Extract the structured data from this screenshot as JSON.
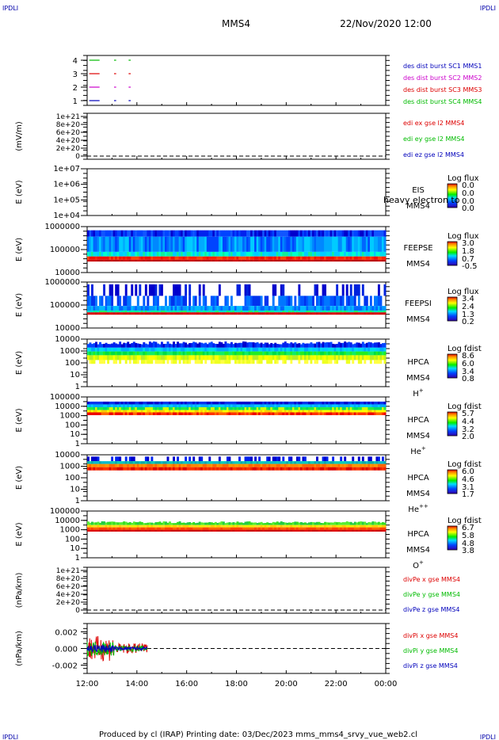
{
  "header": {
    "corner_left_top": "IPDLI",
    "corner_right_top": "IPDLI",
    "corner_left_bottom": "IPDLI",
    "corner_right_bottom": "IPDLI",
    "title": "MMS4",
    "datetime": "22/Nov/2020 12:00"
  },
  "footer": {
    "credit": "Produced by cl (IRAP)   Printing date: 03/Dec/2023   mms_mms4_srvy_vue_web2.cl"
  },
  "colors": {
    "red": "#dd0000",
    "green": "#00bb00",
    "blue": "#0000bb",
    "magenta": "#cc00cc",
    "black": "#000000"
  },
  "chart_data": [
    {
      "type": "line",
      "id": "burst",
      "ylabel": "",
      "yticks": [
        "4",
        "3",
        "2",
        "1"
      ],
      "x_ticks": [
        "12:00",
        "14:00",
        "16:00",
        "18:00",
        "20:00",
        "22:00",
        "00:00"
      ],
      "legend": [
        {
          "text": "des dist burst SC1 MMS1",
          "color": "#0000bb"
        },
        {
          "text": "des dist burst SC2 MMS2",
          "color": "#cc00cc"
        },
        {
          "text": "des dist burst SC3 MMS3",
          "color": "#dd0000"
        },
        {
          "text": "des dist burst SC4 MMS4",
          "color": "#00bb00"
        }
      ],
      "series": [
        {
          "level": 4,
          "color": "#00bb00",
          "segments": [
            [
              "12:05",
              "12:30"
            ],
            [
              "13:05",
              "13:10"
            ],
            [
              "13:40",
              "13:45"
            ]
          ]
        },
        {
          "level": 3,
          "color": "#dd0000",
          "segments": [
            [
              "12:05",
              "12:30"
            ],
            [
              "13:05",
              "13:10"
            ],
            [
              "13:40",
              "13:45"
            ]
          ]
        },
        {
          "level": 2,
          "color": "#cc00cc",
          "segments": [
            [
              "12:05",
              "12:30"
            ],
            [
              "13:05",
              "13:10"
            ],
            [
              "13:40",
              "13:45"
            ]
          ]
        },
        {
          "level": 1,
          "color": "#0000bb",
          "segments": [
            [
              "12:05",
              "12:30"
            ],
            [
              "13:05",
              "13:10"
            ],
            [
              "13:40",
              "13:45"
            ]
          ]
        }
      ]
    },
    {
      "type": "line",
      "id": "efield",
      "ylabel": "(mV/m)",
      "yticks": [
        "1e+21",
        "8e+20",
        "6e+20",
        "4e+20",
        "2e+20",
        "0"
      ],
      "legend": [
        {
          "text": "edi ex gse l2 MMS4",
          "color": "#dd0000"
        },
        {
          "text": "edi ey gse l2 MMS4",
          "color": "#00bb00"
        },
        {
          "text": "edi ez gse l2 MMS4",
          "color": "#0000bb"
        }
      ]
    },
    {
      "type": "heatmap",
      "id": "eis",
      "ylabel": "E (eV)",
      "yticks": [
        "1e+07",
        "1e+06",
        "1e+05",
        "1e+04"
      ],
      "label_lines": [
        "EIS",
        "MMS4"
      ],
      "overlay": "heavy electron to",
      "colorbar_title": "Log flux",
      "colorbar_ticks": [
        "0.0",
        "0.0",
        "0.0",
        "0.0"
      ]
    },
    {
      "type": "heatmap",
      "id": "feepse",
      "ylabel": "E (eV)",
      "yticks": [
        "1000000",
        "100000",
        "10000"
      ],
      "label_lines": [
        "FEEPSE",
        "MMS4"
      ],
      "colorbar_title": "Log flux",
      "colorbar_ticks": [
        "3.0",
        "1.8",
        "0.7",
        "-0.5"
      ]
    },
    {
      "type": "heatmap",
      "id": "feepsi",
      "ylabel": "E (eV)",
      "yticks": [
        "1000000",
        "100000",
        "10000"
      ],
      "label_lines": [
        "FEEPSI",
        "MMS4"
      ],
      "colorbar_title": "Log flux",
      "colorbar_ticks": [
        "3.4",
        "2.4",
        "1.3",
        "0.2"
      ]
    },
    {
      "type": "heatmap",
      "id": "hpca_h",
      "ylabel": "E (eV)",
      "yticks": [
        "10000",
        "1000",
        "100",
        "10",
        "1"
      ],
      "label_lines": [
        "HPCA",
        "MMS4",
        "H"
      ],
      "species_sup": "+",
      "colorbar_title": "Log fdist",
      "colorbar_ticks": [
        "8.6",
        "6.0",
        "3.4",
        "0.8"
      ]
    },
    {
      "type": "heatmap",
      "id": "hpca_he",
      "ylabel": "E (eV)",
      "yticks": [
        "100000",
        "10000",
        "1000",
        "100",
        "10",
        "1"
      ],
      "label_lines": [
        "HPCA",
        "MMS4",
        "He"
      ],
      "species_sup": "+",
      "colorbar_title": "Log fdist",
      "colorbar_ticks": [
        "5.7",
        "4.4",
        "3.2",
        "2.0"
      ]
    },
    {
      "type": "heatmap",
      "id": "hpca_hepp",
      "ylabel": "E (eV)",
      "yticks": [
        "10000",
        "1000",
        "100",
        "10",
        "1"
      ],
      "label_lines": [
        "HPCA",
        "MMS4",
        "He"
      ],
      "species_sup": "++",
      "colorbar_title": "Log fdist",
      "colorbar_ticks": [
        "6.0",
        "4.6",
        "3.1",
        "1.7"
      ]
    },
    {
      "type": "heatmap",
      "id": "hpca_o",
      "ylabel": "E (eV)",
      "yticks": [
        "100000",
        "10000",
        "1000",
        "100",
        "10",
        "1"
      ],
      "label_lines": [
        "HPCA",
        "MMS4",
        "O"
      ],
      "species_sup": "+",
      "colorbar_title": "Log fdist",
      "colorbar_ticks": [
        "6.7",
        "5.8",
        "4.8",
        "3.8"
      ]
    },
    {
      "type": "line",
      "id": "divpe",
      "ylabel": "(nPa/km)",
      "yticks": [
        "1e+21",
        "8e+20",
        "6e+20",
        "4e+20",
        "2e+20",
        "0"
      ],
      "legend": [
        {
          "text": "divPe x gse MMS4",
          "color": "#dd0000"
        },
        {
          "text": "divPe y gse MMS4",
          "color": "#00bb00"
        },
        {
          "text": "divPe z gse MMS4",
          "color": "#0000bb"
        }
      ]
    },
    {
      "type": "line",
      "id": "divpi",
      "ylabel": "(nPa/km)",
      "yticks": [
        "0.002",
        "0.000",
        "-0.002"
      ],
      "ylim": [
        -0.003,
        0.003
      ],
      "legend": [
        {
          "text": "divPi x gse MMS4",
          "color": "#dd0000"
        },
        {
          "text": "divPi y gse MMS4",
          "color": "#00bb00"
        },
        {
          "text": "divPi z gse MMS4",
          "color": "#0000bb"
        }
      ],
      "data_range": [
        "12:00",
        "14:25"
      ],
      "amplitude": [
        0.0015,
        0.0009,
        0.0005
      ]
    }
  ]
}
